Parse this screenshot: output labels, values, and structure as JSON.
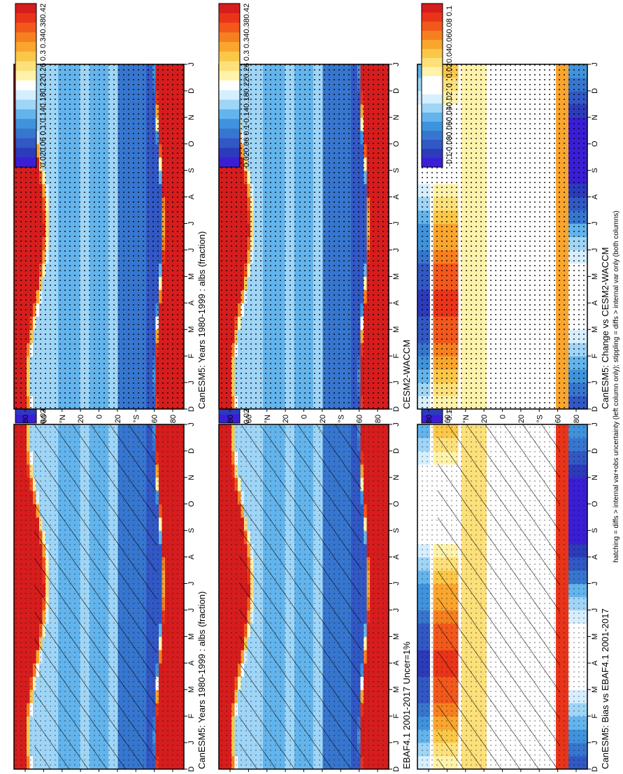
{
  "footnote": "hatching = diffs > internal var+obs uncertainty (left column only); stippling = diffs > internal var only (both columns)",
  "palettes": {
    "abs": [
      "#d61d1d",
      "#e9341a",
      "#f2581c",
      "#f6801f",
      "#f9a52e",
      "#fbc748",
      "#fde07a",
      "#fff3ab",
      "#ffffff",
      "#d6efff",
      "#9fd5f6",
      "#63b4ec",
      "#3f93dc",
      "#3776cf",
      "#3158c4",
      "#2c3bbb",
      "#3a1ed6"
    ],
    "diff": [
      "#d61d1d",
      "#e9341a",
      "#f2581c",
      "#f6801f",
      "#f9a52e",
      "#fbc748",
      "#fde07a",
      "#fff3ab",
      "#ffffff",
      "#ffffff",
      "#d6efff",
      "#9fd5f6",
      "#63b4ec",
      "#3f93dc",
      "#3776cf",
      "#3158c4",
      "#2c3bbb",
      "#3a1ed6"
    ]
  },
  "colorbars": {
    "abs": [
      "0.42",
      "0.38",
      "0.34",
      "0.3",
      "0.26",
      "0.22",
      "0.18",
      "0.14",
      "0.1",
      "0.06",
      "0.02"
    ],
    "diff": [
      "0.1",
      "0.08",
      "0.06",
      "0.04",
      "0.02",
      "0",
      "-0.02",
      "-0.04",
      "-0.06",
      "-0.08",
      "-0.1"
    ]
  },
  "chart_data": [
    {
      "type": "heatmap",
      "title": "CanESM5: Years 1980-1999 : albs (fraction)",
      "x": [
        "D",
        "J",
        "F",
        "M",
        "A",
        "M",
        "J",
        "J",
        "A",
        "S",
        "O",
        "N",
        "D",
        "J"
      ],
      "y_ticks": [
        "80",
        "60",
        "°N",
        "20",
        "0",
        "20",
        "°S",
        "60",
        "80"
      ],
      "colorbar": "abs",
      "value_range": [
        0.02,
        0.42
      ],
      "field": "seasonal_abs",
      "overlay": "hatching+stippling"
    },
    {
      "type": "heatmap",
      "title": "CanESM5: Years 1980-1999 : albs (fraction)",
      "x": [
        "D",
        "J",
        "F",
        "M",
        "A",
        "M",
        "J",
        "J",
        "A",
        "S",
        "O",
        "N",
        "D",
        "J"
      ],
      "y_ticks": [
        "80",
        "60",
        "°N",
        "20",
        "0",
        "20",
        "°S",
        "60",
        "80"
      ],
      "colorbar": "abs",
      "value_range": [
        0.02,
        0.42
      ],
      "field": "seasonal_abs",
      "overlay": "stippling"
    },
    {
      "type": "heatmap",
      "title": "EBAF4.1 2001-2017 Uncer=1%",
      "x": [
        "D",
        "J",
        "F",
        "M",
        "A",
        "M",
        "J",
        "J",
        "A",
        "S",
        "O",
        "N",
        "D",
        "J"
      ],
      "y_ticks": [
        "80",
        "60",
        "°N",
        "20",
        "0",
        "20",
        "°S",
        "60",
        "80"
      ],
      "colorbar": "abs",
      "value_range": [
        0.02,
        0.42
      ],
      "field": "seasonal_abs",
      "overlay": "hatching+stippling"
    },
    {
      "type": "heatmap",
      "title": "CESM2-WACCM",
      "x": [
        "D",
        "J",
        "F",
        "M",
        "A",
        "M",
        "J",
        "J",
        "A",
        "S",
        "O",
        "N",
        "D",
        "J"
      ],
      "y_ticks": [
        "80",
        "60",
        "°N",
        "20",
        "0",
        "20",
        "°S",
        "60",
        "80"
      ],
      "colorbar": "abs",
      "value_range": [
        0.02,
        0.42
      ],
      "field": "seasonal_abs",
      "overlay": "stippling"
    },
    {
      "type": "heatmap",
      "title": "CanESM5: Bias vs EBAF4.1 2001-2017",
      "x": [
        "D",
        "J",
        "F",
        "M",
        "A",
        "M",
        "J",
        "J",
        "A",
        "S",
        "O",
        "N",
        "D",
        "J"
      ],
      "y_ticks": [
        "80",
        "60",
        "°N",
        "20",
        "0",
        "20",
        "°S",
        "60",
        "80"
      ],
      "colorbar": "diff",
      "value_range": [
        -0.1,
        0.1
      ],
      "field": "seasonal_diff",
      "overlay": "hatching+stippling"
    },
    {
      "type": "heatmap",
      "title": "CanESM5: Change vs CESM2-WACCM",
      "x": [
        "D",
        "J",
        "F",
        "M",
        "A",
        "M",
        "J",
        "J",
        "A",
        "S",
        "O",
        "N",
        "D",
        "J"
      ],
      "y_ticks": [
        "80",
        "60",
        "°N",
        "20",
        "0",
        "20",
        "°S",
        "60",
        "80"
      ],
      "colorbar": "diff",
      "value_range": [
        -0.1,
        0.1
      ],
      "field": "seasonal_diff",
      "overlay": "stippling"
    }
  ]
}
